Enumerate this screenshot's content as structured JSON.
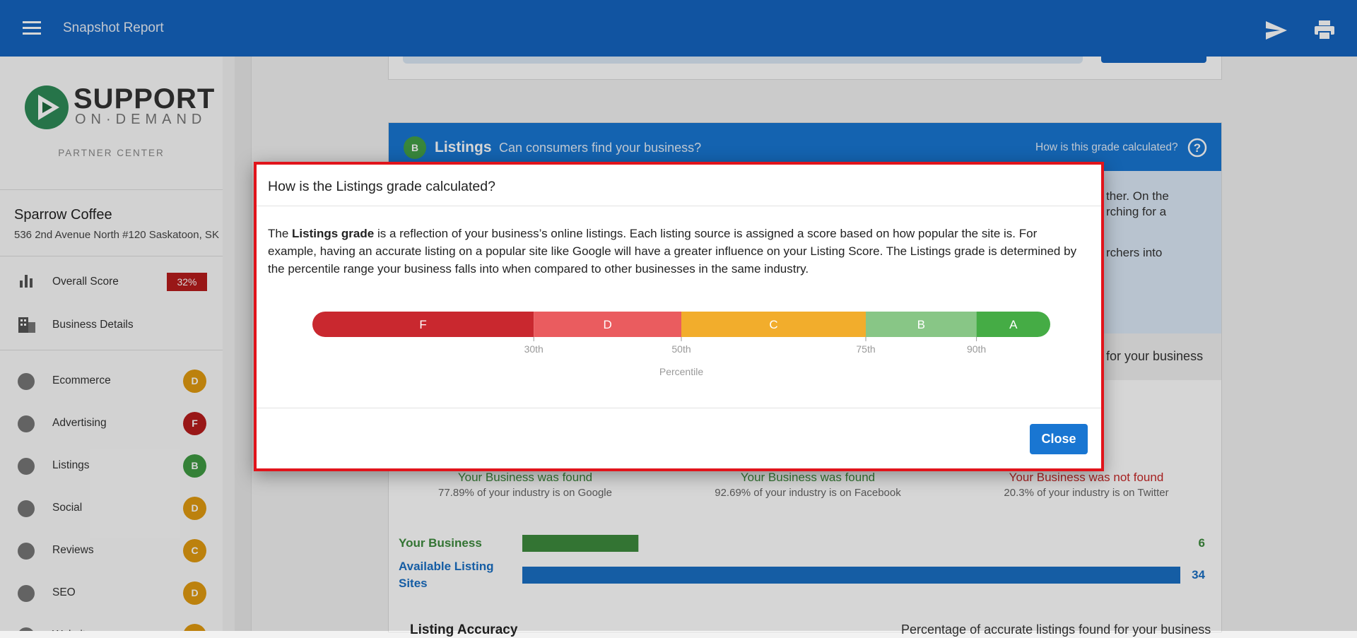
{
  "topbar": {
    "title": "Snapshot Report"
  },
  "sidebar": {
    "logo_main": "SUPPORT",
    "logo_sub": "ON·DEMAND",
    "partner": "PARTNER CENTER",
    "business_name": "Sparrow Coffee",
    "address": "536 2nd Avenue North #120 Saskatoon, SK",
    "overall": {
      "label": "Overall Score",
      "badge": "32%"
    },
    "details": {
      "label": "Business Details"
    },
    "sections": [
      {
        "label": "Ecommerce",
        "grade": "D",
        "color": "#e09a10"
      },
      {
        "label": "Advertising",
        "grade": "F",
        "color": "#b71c1c"
      },
      {
        "label": "Listings",
        "grade": "B",
        "color": "#3e9a42"
      },
      {
        "label": "Social",
        "grade": "D",
        "color": "#e09a10"
      },
      {
        "label": "Reviews",
        "grade": "C",
        "color": "#e09a10"
      },
      {
        "label": "SEO",
        "grade": "D",
        "color": "#e09a10"
      },
      {
        "label": "Website",
        "grade": "D",
        "color": "#e09a10"
      }
    ]
  },
  "listings_card": {
    "grade": "B",
    "title": "Listings",
    "subtitle": "Can consumers find your business?",
    "help": "How is this grade calculated?",
    "fragments": [
      "ther. On the",
      "rching for a",
      "rchers into"
    ],
    "found_heading": "for your business",
    "sources": [
      {
        "status": "Your Business was found",
        "note": "77.89% of your industry is on Google",
        "color": "#3d8b3d"
      },
      {
        "status": "Your Business was found",
        "note": "92.69% of your industry is on Facebook",
        "color": "#3d8b3d"
      },
      {
        "status": "Your Business was not found",
        "note": "20.3% of your industry is on Twitter",
        "color": "#c62828"
      }
    ],
    "counts": {
      "xlim": [
        0,
        34
      ],
      "items": [
        {
          "label": "Your Business",
          "value": 6,
          "color": "#3d8b3d"
        },
        {
          "label": "Available Listing Sites",
          "value": 34,
          "color": "#1a6fc4"
        }
      ]
    },
    "accuracy_title": "Listing Accuracy",
    "accuracy_note": "Percentage of accurate listings found for your business"
  },
  "modal": {
    "title": "How is the Listings grade calculated?",
    "body_before": "The ",
    "body_bold": "Listings grade",
    "body_after": " is a reflection of your business’s online listings. Each listing source is assigned a score based on how popular the site is. For example, having an accurate listing on a popular site like Google will have a greater influence on your Listing Score. The Listings grade is determined by the percentile range your business falls into when compared to other businesses in the same industry.",
    "scale": {
      "label": "Percentile",
      "xlim": [
        0,
        100
      ],
      "ticks": [
        {
          "value": 30,
          "label": "30th"
        },
        {
          "value": 50,
          "label": "50th"
        },
        {
          "value": 75,
          "label": "75th"
        },
        {
          "value": 90,
          "label": "90th"
        }
      ],
      "grades": [
        {
          "grade": "F",
          "color": "#c9282f"
        },
        {
          "grade": "D",
          "color": "#ea5c5f"
        },
        {
          "grade": "C",
          "color": "#f2ad2c"
        },
        {
          "grade": "B",
          "color": "#88c686"
        },
        {
          "grade": "A",
          "color": "#45ac45"
        }
      ]
    },
    "close": "Close"
  }
}
